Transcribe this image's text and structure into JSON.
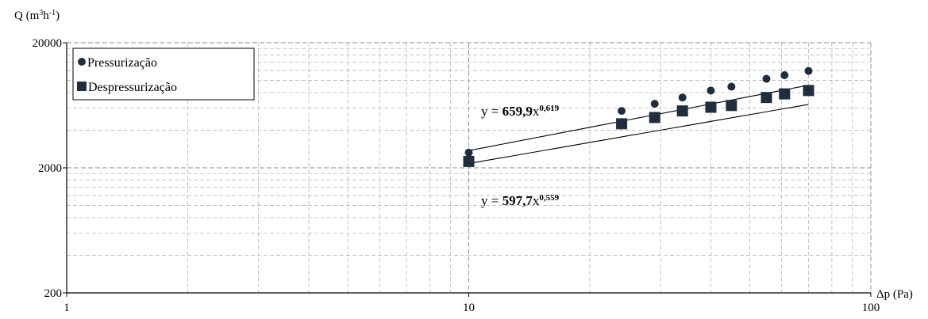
{
  "chart_data": {
    "type": "scatter",
    "xscale": "log",
    "yscale": "log",
    "xlim": [
      1,
      100
    ],
    "ylim": [
      200,
      20000
    ],
    "grid": true,
    "legend_placement": "top-left",
    "ylabel_prefix": "Q (m",
    "ylabel_sup1": "3",
    "ylabel_mid": "h",
    "ylabel_sup2": "-1",
    "ylabel_suffix": ")",
    "xlabel": "Δp (Pa)",
    "x_ticks": [
      {
        "value": 1,
        "label": "1"
      },
      {
        "value": 10,
        "label": "10"
      },
      {
        "value": 100,
        "label": "100"
      }
    ],
    "y_ticks": [
      {
        "value": 200,
        "label": "200"
      },
      {
        "value": 2000,
        "label": "2000"
      },
      {
        "value": 20000,
        "label": "20000"
      }
    ],
    "series": [
      {
        "name": "Pressurização",
        "marker": "circle",
        "color": "#1f2d3d",
        "x": [
          10,
          24,
          29,
          34,
          40,
          45,
          55,
          61,
          70
        ],
        "y": [
          2650,
          5700,
          6500,
          7300,
          8300,
          8900,
          10300,
          11000,
          11900
        ],
        "fit": {
          "coef": 659.9,
          "exp": 0.619,
          "coef_label": "659,9",
          "exp_label": "0,619",
          "prefix": "y = ",
          "base": "x"
        }
      },
      {
        "name": "Despressurização",
        "marker": "square",
        "color": "#1f2d3d",
        "x": [
          10,
          24,
          29,
          34,
          40,
          45,
          55,
          61,
          70
        ],
        "y": [
          2250,
          4500,
          5050,
          5700,
          6100,
          6300,
          7300,
          7800,
          8300
        ],
        "fit": {
          "coef": 597.7,
          "exp": 0.559,
          "coef_label": "597,7",
          "exp_label": "0,559",
          "prefix": "y = ",
          "base": "x"
        }
      }
    ]
  }
}
